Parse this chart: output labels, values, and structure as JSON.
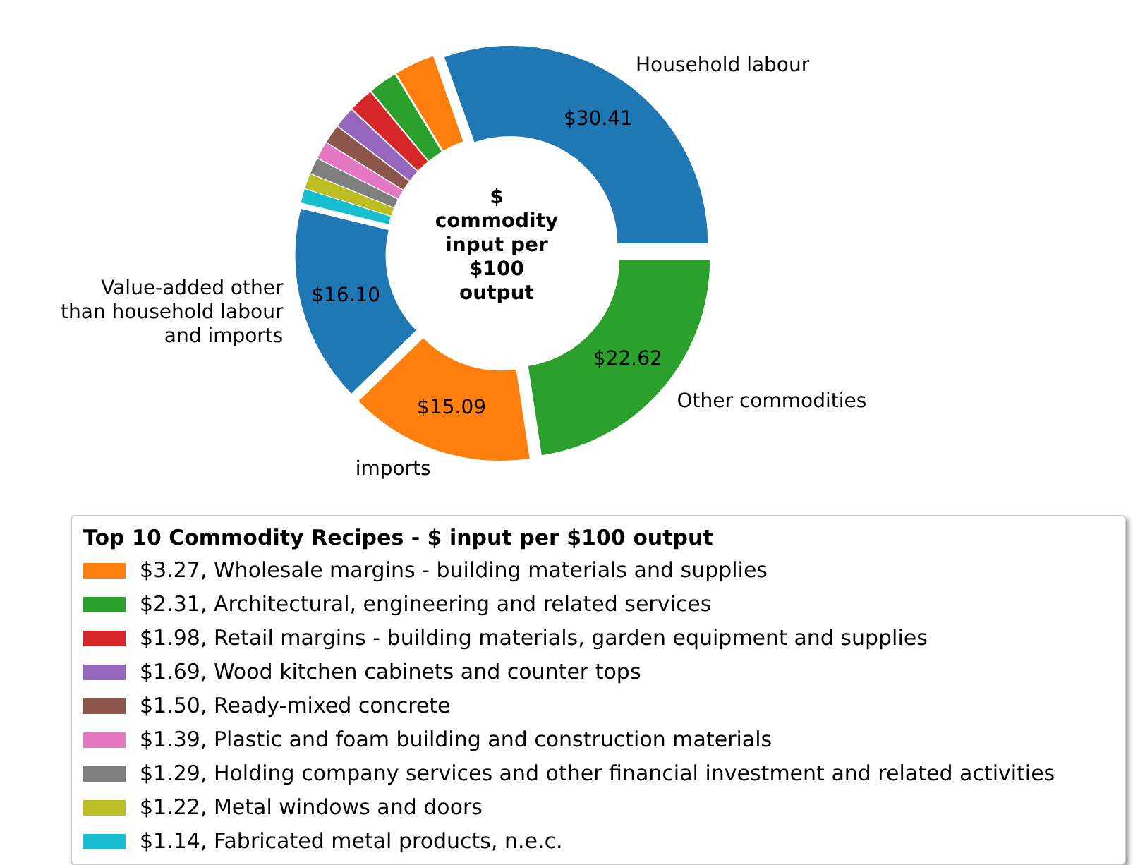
{
  "chart_data": {
    "type": "donut",
    "categories": [
      "Household labour",
      "$3.27, Wholesale margins - building materials and supplies",
      "$2.31, Architectural, engineering and related services",
      "$1.98, Retail margins - building materials, garden equipment and supplies",
      "$1.69, Wood kitchen cabinets and counter tops",
      "$1.50, Ready-mixed concrete",
      "$1.39, Plastic and foam building and construction materials",
      "$1.29, Holding company services and other financial investment and related activities",
      "$1.22, Metal windows and doors",
      "$1.14, Fabricated metal products, n.e.c.",
      "Value-added other than household labour and imports",
      "imports",
      "Other commodities"
    ],
    "values": [
      30.41,
      3.27,
      2.31,
      1.98,
      1.69,
      1.5,
      1.39,
      1.29,
      1.22,
      1.14,
      16.1,
      15.09,
      22.62
    ],
    "colors": [
      "#1f77b4",
      "#ff7f0e",
      "#2ca02c",
      "#d62728",
      "#9467bd",
      "#8c564b",
      "#e377c2",
      "#7f7f7f",
      "#bcbd22",
      "#17becf",
      "#1f77b4",
      "#ff7f0e",
      "#2ca02c"
    ],
    "value_labels": [
      "$30.41",
      null,
      null,
      null,
      null,
      null,
      null,
      null,
      null,
      null,
      "$16.10",
      "$15.09",
      "$22.62"
    ],
    "annotations": [
      "$ commodity input per $100 output"
    ],
    "legend_title": "Top 10 Commodity Recipes - $ input per $100 output",
    "legend": "bottom"
  }
}
